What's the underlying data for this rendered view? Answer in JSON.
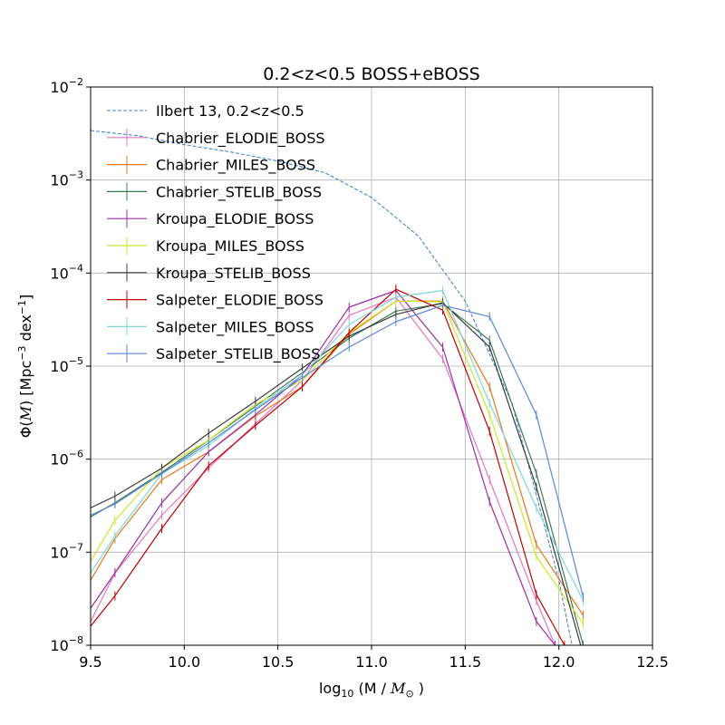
{
  "chart_data": {
    "type": "line",
    "title": "0.2<z<0.5 BOSS+eBOSS",
    "xlabel": {
      "prefix": "log",
      "sub": "10",
      "middle": " (M / ",
      "italic": "M",
      "italic_sub": "⊙",
      "suffix": " )"
    },
    "ylabel": {
      "prefix": "Φ(",
      "italic": "M",
      "middle": ") [Mpc",
      "sup1": "−3",
      "mid2": " dex",
      "sup2": "−1",
      "suffix": "]"
    },
    "xlim": [
      9.5,
      12.5
    ],
    "ylim": [
      1e-08,
      0.01
    ],
    "yscale": "log",
    "grid": true,
    "legend_position": "top-left",
    "x_ticks": [
      {
        "value": 9.5,
        "label": "9.5"
      },
      {
        "value": 10.0,
        "label": "10.0"
      },
      {
        "value": 10.5,
        "label": "10.5"
      },
      {
        "value": 11.0,
        "label": "11.0"
      },
      {
        "value": 11.5,
        "label": "11.5"
      },
      {
        "value": 12.0,
        "label": "12.0"
      },
      {
        "value": 12.5,
        "label": "12.5"
      }
    ],
    "y_ticks": [
      {
        "value": 1e-08,
        "base": "10",
        "exp": "−8"
      },
      {
        "value": 1e-07,
        "base": "10",
        "exp": "−7"
      },
      {
        "value": 1e-06,
        "base": "10",
        "exp": "−6"
      },
      {
        "value": 1e-05,
        "base": "10",
        "exp": "−5"
      },
      {
        "value": 0.0001,
        "base": "10",
        "exp": "−4"
      },
      {
        "value": 0.001,
        "base": "10",
        "exp": "−3"
      },
      {
        "value": 0.01,
        "base": "10",
        "exp": "−2"
      }
    ],
    "series": [
      {
        "name": "Ilbert 13, 0.2<z<0.5",
        "color": "#4a86c8",
        "style": "dashed",
        "x": [
          9.5,
          9.75,
          10.0,
          10.25,
          10.5,
          10.75,
          11.0,
          11.25,
          11.5,
          11.75,
          12.0,
          12.07
        ],
        "y": [
          0.0034,
          0.003,
          0.0024,
          0.002,
          0.0016,
          0.0012,
          0.00065,
          0.00025,
          5e-05,
          4e-06,
          5e-08,
          1e-08
        ]
      },
      {
        "name": "Chabrier_ELODIE_BOSS",
        "color": "#e377c2",
        "style": "solid",
        "x": [
          9.5,
          9.63,
          9.88,
          10.13,
          10.38,
          10.63,
          10.88,
          11.13,
          11.38,
          11.63,
          11.88,
          11.98
        ],
        "y": [
          1.8e-08,
          6e-08,
          2.5e-07,
          8e-07,
          2.4e-06,
          7e-06,
          3.5e-05,
          5.5e-05,
          1.2e-05,
          6e-07,
          3e-08,
          1e-08
        ]
      },
      {
        "name": "Chabrier_MILES_BOSS",
        "color": "#e8761d",
        "style": "solid",
        "x": [
          9.5,
          9.63,
          9.88,
          10.13,
          10.38,
          10.63,
          10.88,
          11.13,
          11.38,
          11.63,
          11.88,
          12.13
        ],
        "y": [
          5e-08,
          1.4e-07,
          6e-07,
          1.2e-06,
          2.9e-06,
          6e-06,
          2.2e-05,
          5e-05,
          5e-05,
          6e-06,
          1.2e-07,
          2.1e-08
        ]
      },
      {
        "name": "Chabrier_STELIB_BOSS",
        "color": "#3d7a57",
        "style": "solid",
        "x": [
          9.5,
          9.63,
          9.88,
          10.13,
          10.38,
          10.63,
          10.88,
          11.13,
          11.38,
          11.63,
          11.88,
          12.13
        ],
        "y": [
          2.4e-07,
          3.4e-07,
          7.2e-07,
          1.6e-06,
          3.7e-06,
          8.5e-06,
          2e-05,
          3.9e-05,
          4.7e-05,
          1.9e-05,
          7e-07,
          1e-08
        ]
      },
      {
        "name": "Kroupa_ELODIE_BOSS",
        "color": "#9b2ea8",
        "style": "solid",
        "x": [
          9.5,
          9.63,
          9.88,
          10.13,
          10.38,
          10.63,
          10.88,
          11.13,
          11.38,
          11.63,
          11.88,
          11.98
        ],
        "y": [
          2.5e-08,
          6e-08,
          3.4e-07,
          1.2e-06,
          3e-06,
          8e-06,
          4.3e-05,
          6.5e-05,
          1.6e-05,
          3.5e-07,
          1.8e-08,
          1e-08
        ]
      },
      {
        "name": "Kroupa_MILES_BOSS",
        "color": "#cde82c",
        "style": "solid",
        "x": [
          9.5,
          9.63,
          9.88,
          10.13,
          10.38,
          10.63,
          10.88,
          11.13,
          11.38,
          11.63,
          11.88,
          12.13
        ],
        "y": [
          8e-08,
          2.2e-07,
          8e-07,
          1.6e-06,
          3.9e-06,
          7e-06,
          2.3e-05,
          5e-05,
          4.9e-05,
          3e-06,
          9e-08,
          1.7e-08
        ]
      },
      {
        "name": "Kroupa_STELIB_BOSS",
        "color": "#3c3c3c",
        "style": "solid",
        "x": [
          9.5,
          9.63,
          9.88,
          10.13,
          10.38,
          10.63,
          10.88,
          11.13,
          11.38,
          11.63,
          11.88,
          12.13
        ],
        "y": [
          3e-07,
          4e-07,
          8e-07,
          1.9e-06,
          4.2e-06,
          9.5e-06,
          2.1e-05,
          3.6e-05,
          4.8e-05,
          1.6e-05,
          5e-07,
          8e-09
        ]
      },
      {
        "name": "Salpeter_ELODIE_BOSS",
        "color": "#c00000",
        "style": "solid",
        "x": [
          9.5,
          9.63,
          9.88,
          10.13,
          10.38,
          10.63,
          10.88,
          11.13,
          11.38,
          11.63,
          11.88,
          12.03
        ],
        "y": [
          1.6e-08,
          3.4e-08,
          1.8e-07,
          8.5e-07,
          2.3e-06,
          6e-06,
          2.3e-05,
          6.7e-05,
          4e-05,
          2e-06,
          3.5e-08,
          1e-08
        ]
      },
      {
        "name": "Salpeter_MILES_BOSS",
        "color": "#7fd7d7",
        "style": "solid",
        "x": [
          9.5,
          9.63,
          9.88,
          10.13,
          10.38,
          10.63,
          10.88,
          11.13,
          11.38,
          11.63,
          11.88,
          12.13
        ],
        "y": [
          6e-08,
          1.5e-07,
          7e-07,
          1.4e-06,
          3.5e-06,
          8e-06,
          2.8e-05,
          5.5e-05,
          6.5e-05,
          4e-06,
          3e-07,
          3e-08
        ]
      },
      {
        "name": "Salpeter_STELIB_BOSS",
        "color": "#5b86d6",
        "style": "solid",
        "x": [
          9.5,
          9.63,
          9.88,
          10.13,
          10.38,
          10.63,
          10.88,
          11.13,
          11.38,
          11.63,
          11.88,
          12.13
        ],
        "y": [
          2.5e-07,
          3.3e-07,
          7e-07,
          1.5e-06,
          3.4e-06,
          7.5e-06,
          1.6e-05,
          3e-05,
          4.5e-05,
          3.4e-05,
          3e-06,
          3.3e-08
        ]
      }
    ]
  }
}
